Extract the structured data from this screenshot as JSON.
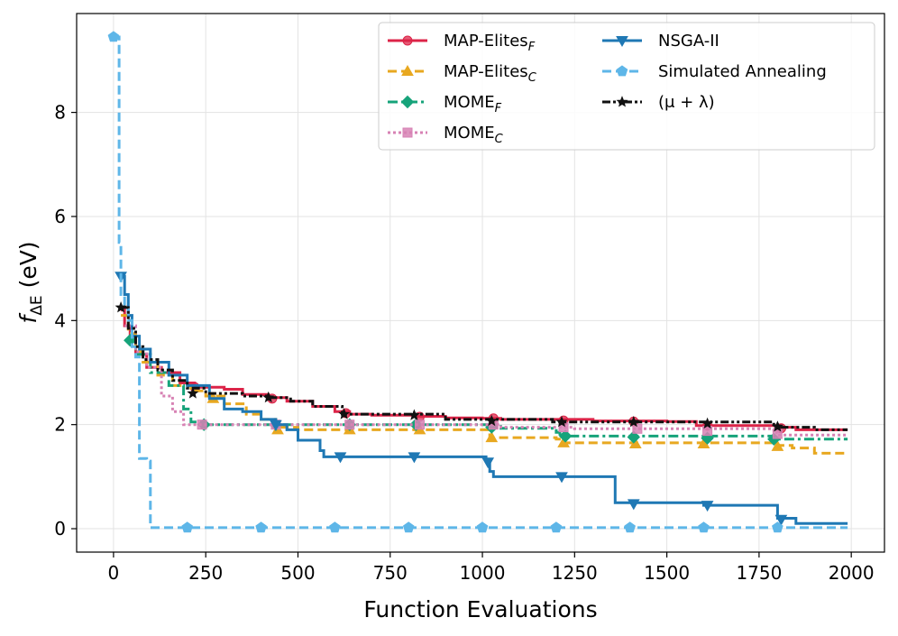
{
  "chart_data": {
    "type": "line",
    "title": "",
    "xlabel": "Function Evaluations",
    "ylabel_base": "f",
    "ylabel_sub": "ΔE",
    "ylabel_unit": " (eV)",
    "xlim": [
      -100,
      2090
    ],
    "ylim": [
      -0.45,
      9.9
    ],
    "xticks": [
      0,
      250,
      500,
      750,
      1000,
      1250,
      1500,
      1750,
      2000
    ],
    "xtick_labels": [
      "0",
      "250",
      "500",
      "750",
      "1000",
      "1250",
      "1500",
      "1750",
      "2000"
    ],
    "yticks": [
      0,
      2,
      4,
      6,
      8
    ],
    "ytick_labels": [
      "0",
      "2",
      "4",
      "6",
      "8"
    ],
    "grid": true,
    "legend_position": "top-right",
    "series": [
      {
        "name": "MAP-Elites",
        "sub": "F",
        "color": "#dc2448",
        "dash": "solid",
        "marker": "circle",
        "points": [
          [
            20,
            4.2
          ],
          [
            30,
            3.9
          ],
          [
            45,
            3.6
          ],
          [
            60,
            3.35
          ],
          [
            90,
            3.1
          ],
          [
            130,
            3.0
          ],
          [
            180,
            2.8
          ],
          [
            220,
            2.72
          ],
          [
            300,
            2.68
          ],
          [
            350,
            2.58
          ],
          [
            420,
            2.52
          ],
          [
            470,
            2.45
          ],
          [
            540,
            2.35
          ],
          [
            600,
            2.25
          ],
          [
            640,
            2.2
          ],
          [
            700,
            2.18
          ],
          [
            820,
            2.16
          ],
          [
            900,
            2.13
          ],
          [
            1000,
            2.12
          ],
          [
            1050,
            2.1
          ],
          [
            1200,
            2.1
          ],
          [
            1300,
            2.07
          ],
          [
            1500,
            2.06
          ],
          [
            1580,
            1.98
          ],
          [
            1800,
            1.95
          ],
          [
            1850,
            1.9
          ],
          [
            1990,
            1.9
          ]
        ],
        "markers": [
          [
            220,
            2.72
          ],
          [
            430,
            2.5
          ],
          [
            630,
            2.22
          ],
          [
            830,
            2.15
          ],
          [
            1030,
            2.12
          ],
          [
            1220,
            2.08
          ],
          [
            1410,
            2.06
          ],
          [
            1610,
            1.98
          ],
          [
            1810,
            1.93
          ]
        ]
      },
      {
        "name": "MAP-Elites",
        "sub": "C",
        "color": "#e8a820",
        "dash": "dash",
        "marker": "triangle-up",
        "points": [
          [
            20,
            4.1
          ],
          [
            40,
            3.75
          ],
          [
            60,
            3.4
          ],
          [
            80,
            3.2
          ],
          [
            120,
            2.95
          ],
          [
            160,
            2.75
          ],
          [
            210,
            2.65
          ],
          [
            250,
            2.55
          ],
          [
            300,
            2.4
          ],
          [
            360,
            2.2
          ],
          [
            400,
            2.1
          ],
          [
            440,
            1.95
          ],
          [
            500,
            1.9
          ],
          [
            600,
            1.9
          ],
          [
            1000,
            1.9
          ],
          [
            1020,
            1.75
          ],
          [
            1200,
            1.72
          ],
          [
            1220,
            1.65
          ],
          [
            1790,
            1.6
          ],
          [
            1840,
            1.55
          ],
          [
            1900,
            1.45
          ],
          [
            1990,
            1.43
          ]
        ],
        "markers": [
          [
            270,
            2.5
          ],
          [
            445,
            1.9
          ],
          [
            640,
            1.9
          ],
          [
            830,
            1.9
          ],
          [
            1025,
            1.75
          ],
          [
            1220,
            1.65
          ],
          [
            1415,
            1.63
          ],
          [
            1600,
            1.63
          ],
          [
            1800,
            1.58
          ]
        ]
      },
      {
        "name": "MOME",
        "sub": "F",
        "color": "#16a37a",
        "dash": "dashdot",
        "marker": "diamond",
        "points": [
          [
            40,
            3.6
          ],
          [
            60,
            3.35
          ],
          [
            100,
            3.0
          ],
          [
            150,
            2.75
          ],
          [
            190,
            2.3
          ],
          [
            210,
            2.05
          ],
          [
            240,
            2.0
          ],
          [
            1000,
            2.0
          ],
          [
            1050,
            1.93
          ],
          [
            1200,
            1.85
          ],
          [
            1210,
            1.78
          ],
          [
            1790,
            1.75
          ],
          [
            1800,
            1.72
          ],
          [
            1990,
            1.72
          ]
        ],
        "markers": [
          [
            45,
            3.62
          ],
          [
            245,
            2.0
          ],
          [
            440,
            2.0
          ],
          [
            640,
            2.0
          ],
          [
            820,
            2.0
          ],
          [
            1025,
            1.95
          ],
          [
            1225,
            1.78
          ],
          [
            1410,
            1.76
          ],
          [
            1610,
            1.74
          ],
          [
            1790,
            1.72
          ]
        ]
      },
      {
        "name": "MOME",
        "sub": "C",
        "color": "#d782b4",
        "dash": "dot",
        "marker": "square",
        "points": [
          [
            30,
            3.9
          ],
          [
            60,
            3.4
          ],
          [
            90,
            3.1
          ],
          [
            130,
            2.55
          ],
          [
            160,
            2.25
          ],
          [
            190,
            2.0
          ],
          [
            1000,
            2.0
          ],
          [
            1050,
            1.95
          ],
          [
            1250,
            1.92
          ],
          [
            1790,
            1.85
          ],
          [
            1800,
            1.8
          ],
          [
            1990,
            1.8
          ]
        ],
        "markers": [
          [
            240,
            2.0
          ],
          [
            440,
            2.0
          ],
          [
            640,
            2.0
          ],
          [
            830,
            2.0
          ],
          [
            1030,
            2.0
          ],
          [
            1220,
            1.95
          ],
          [
            1420,
            1.92
          ],
          [
            1610,
            1.88
          ],
          [
            1800,
            1.82
          ]
        ]
      },
      {
        "name": "NSGA-II",
        "sub": "",
        "color": "#1f78b4",
        "dash": "solid",
        "marker": "triangle-down",
        "points": [
          [
            20,
            4.85
          ],
          [
            30,
            4.5
          ],
          [
            40,
            4.1
          ],
          [
            50,
            3.7
          ],
          [
            70,
            3.45
          ],
          [
            100,
            3.2
          ],
          [
            150,
            2.95
          ],
          [
            200,
            2.75
          ],
          [
            260,
            2.5
          ],
          [
            300,
            2.3
          ],
          [
            350,
            2.25
          ],
          [
            400,
            2.1
          ],
          [
            440,
            2.0
          ],
          [
            470,
            1.9
          ],
          [
            500,
            1.7
          ],
          [
            560,
            1.5
          ],
          [
            570,
            1.38
          ],
          [
            990,
            1.38
          ],
          [
            1010,
            1.3
          ],
          [
            1020,
            1.1
          ],
          [
            1030,
            1.0
          ],
          [
            1350,
            1.0
          ],
          [
            1360,
            0.5
          ],
          [
            1600,
            0.45
          ],
          [
            1780,
            0.45
          ],
          [
            1800,
            0.2
          ],
          [
            1850,
            0.1
          ],
          [
            1990,
            0.1
          ]
        ],
        "markers": [
          [
            20,
            4.85
          ],
          [
            440,
            2.0
          ],
          [
            615,
            1.38
          ],
          [
            815,
            1.38
          ],
          [
            1015,
            1.28
          ],
          [
            1215,
            1.0
          ],
          [
            1410,
            0.48
          ],
          [
            1610,
            0.45
          ],
          [
            1810,
            0.18
          ]
        ]
      },
      {
        "name": "Simulated Annealing",
        "sub": "",
        "color": "#5eb6e8",
        "dash": "dash",
        "marker": "pentagon",
        "points": [
          [
            0,
            9.45
          ],
          [
            10,
            9.45
          ],
          [
            15,
            5.5
          ],
          [
            20,
            4.5
          ],
          [
            30,
            4.3
          ],
          [
            40,
            4.0
          ],
          [
            50,
            3.5
          ],
          [
            60,
            3.3
          ],
          [
            70,
            1.35
          ],
          [
            90,
            1.3
          ],
          [
            100,
            1.3
          ],
          [
            100,
            0.02
          ],
          [
            1990,
            0.02
          ]
        ],
        "markers": [
          [
            0,
            9.45
          ],
          [
            200,
            0.02
          ],
          [
            400,
            0.02
          ],
          [
            600,
            0.02
          ],
          [
            800,
            0.02
          ],
          [
            1000,
            0.02
          ],
          [
            1200,
            0.02
          ],
          [
            1400,
            0.02
          ],
          [
            1600,
            0.02
          ],
          [
            1800,
            0.02
          ]
        ]
      },
      {
        "name": "(μ + λ)",
        "sub": "",
        "color": "#111111",
        "dash": "dashdotdot",
        "marker": "star",
        "points": [
          [
            20,
            4.25
          ],
          [
            40,
            3.85
          ],
          [
            60,
            3.5
          ],
          [
            80,
            3.25
          ],
          [
            120,
            3.05
          ],
          [
            160,
            2.85
          ],
          [
            200,
            2.7
          ],
          [
            250,
            2.6
          ],
          [
            350,
            2.55
          ],
          [
            420,
            2.52
          ],
          [
            480,
            2.45
          ],
          [
            540,
            2.35
          ],
          [
            620,
            2.2
          ],
          [
            820,
            2.2
          ],
          [
            900,
            2.1
          ],
          [
            1190,
            2.05
          ],
          [
            1600,
            2.05
          ],
          [
            1790,
            2.0
          ],
          [
            1800,
            1.95
          ],
          [
            1900,
            1.9
          ],
          [
            1990,
            1.9
          ]
        ],
        "markers": [
          [
            20,
            4.25
          ],
          [
            215,
            2.6
          ],
          [
            420,
            2.52
          ],
          [
            625,
            2.2
          ],
          [
            815,
            2.18
          ],
          [
            1025,
            2.07
          ],
          [
            1215,
            2.05
          ],
          [
            1410,
            2.05
          ],
          [
            1610,
            2.02
          ],
          [
            1800,
            1.96
          ]
        ]
      }
    ]
  }
}
